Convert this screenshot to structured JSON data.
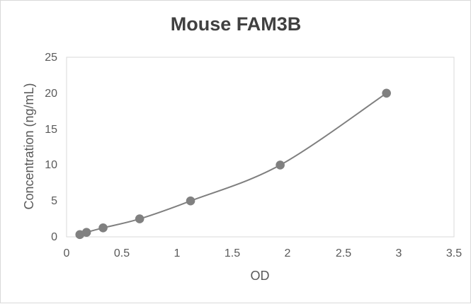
{
  "chart_data": {
    "type": "scatter",
    "title": "Mouse FAM3B",
    "xlabel": "OD",
    "ylabel": "Concentration (ng/mL)",
    "xlim": [
      0,
      3.5
    ],
    "ylim": [
      0,
      25
    ],
    "x_ticks": [
      "0",
      "0.5",
      "1",
      "1.5",
      "2",
      "2.5",
      "3",
      "3.5"
    ],
    "y_ticks": [
      "0",
      "5",
      "10",
      "15",
      "20",
      "25"
    ],
    "grid": false,
    "smooth_line": true,
    "colors": {
      "marker": "#808080",
      "line": "#7f7f7f",
      "plot_border": "#d9d9d9"
    },
    "series": [
      {
        "x": [
          0.12,
          0.18,
          0.33,
          0.66,
          1.12,
          1.93,
          2.89
        ],
        "y": [
          0.3125,
          0.625,
          1.25,
          2.5,
          5,
          10,
          20
        ]
      }
    ]
  }
}
